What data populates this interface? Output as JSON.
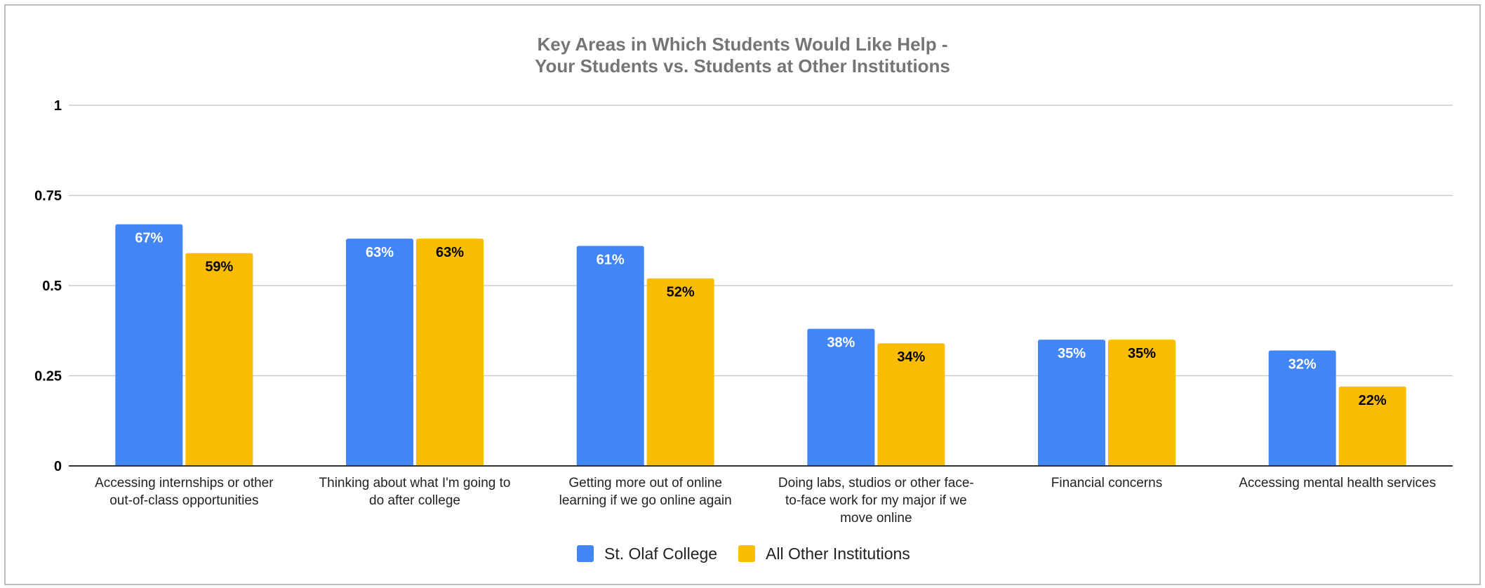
{
  "chart_data": {
    "type": "bar",
    "title": [
      "Key Areas in Which Students Would Like Help -",
      "Your Students vs. Students at Other Institutions"
    ],
    "categories": [
      [
        "Accessing internships or other",
        "out-of-class opportunities"
      ],
      [
        "Thinking about what I'm going to",
        "do after college"
      ],
      [
        "Getting more out of online",
        "learning if we go online again"
      ],
      [
        "Doing labs, studios or other face-",
        "to-face work for my major if we",
        "move online"
      ],
      [
        "Financial concerns"
      ],
      [
        "Accessing mental health services"
      ]
    ],
    "series": [
      {
        "name": "St. Olaf College",
        "color": "#4285F4",
        "label_color": "#ffffff",
        "values": [
          0.67,
          0.63,
          0.61,
          0.38,
          0.35,
          0.32
        ],
        "labels": [
          "67%",
          "63%",
          "61%",
          "38%",
          "35%",
          "32%"
        ]
      },
      {
        "name": "All Other Institutions",
        "color": "#FBBC04",
        "label_color": "#000000",
        "values": [
          0.59,
          0.63,
          0.52,
          0.34,
          0.35,
          0.22
        ],
        "labels": [
          "59%",
          "63%",
          "52%",
          "34%",
          "35%",
          "22%"
        ]
      }
    ],
    "yticks": [
      "0",
      "0.25",
      "0.5",
      "0.75",
      "1"
    ],
    "ylim": [
      0,
      1
    ],
    "grid": true,
    "legend": "bottom"
  }
}
